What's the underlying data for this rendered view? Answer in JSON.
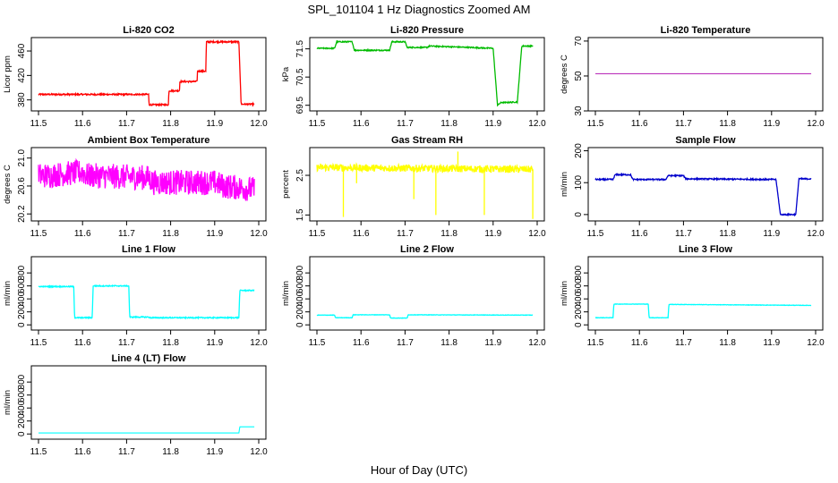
{
  "figure": {
    "title": "SPL_101104  1 Hz Diagnostics Zoomed AM",
    "xlabel": "Hour of Day (UTC)"
  },
  "chart_data": [
    {
      "type": "line",
      "title": "Li-820 CO2",
      "ylabel": "Licor ppm",
      "color": "#ff0000",
      "xlim": [
        11.5,
        12.0
      ],
      "ylim": [
        362,
        482
      ],
      "xticks": [
        11.5,
        11.6,
        11.7,
        11.8,
        11.9,
        12.0
      ],
      "yticks": [
        380,
        420,
        460
      ],
      "noise": 1.2,
      "series": [
        {
          "x": [
            11.5,
            11.75,
            11.751,
            11.795,
            11.796,
            11.82,
            11.821,
            11.86,
            11.861,
            11.88,
            11.881,
            11.955,
            11.96,
            11.99
          ],
          "y": [
            389,
            389,
            372,
            372,
            395,
            395,
            410,
            410,
            427,
            427,
            475,
            475,
            373,
            373
          ]
        }
      ]
    },
    {
      "type": "line",
      "title": "Li-820 Pressure",
      "ylabel": "kPa",
      "color": "#00bb00",
      "xlim": [
        11.5,
        12.0
      ],
      "ylim": [
        69.3,
        71.9
      ],
      "xticks": [
        11.5,
        11.6,
        11.7,
        11.8,
        11.9,
        12.0
      ],
      "yticks": [
        69.5,
        70.5,
        71.5
      ],
      "yticklabels": [
        "69.5",
        "70.5",
        "71.5"
      ],
      "noise": 0.02,
      "series": [
        {
          "x": [
            11.5,
            11.54,
            11.545,
            11.58,
            11.585,
            11.665,
            11.67,
            11.7,
            11.705,
            11.75,
            11.755,
            11.9,
            11.91,
            11.918,
            11.935,
            11.955,
            11.965,
            11.99
          ],
          "y": [
            71.52,
            71.52,
            71.75,
            71.75,
            71.45,
            71.45,
            71.75,
            71.75,
            71.55,
            71.55,
            71.6,
            71.52,
            69.5,
            69.6,
            69.6,
            69.62,
            71.6,
            71.6
          ]
        }
      ]
    },
    {
      "type": "line",
      "title": "Li-820 Temperature",
      "ylabel": "degrees C",
      "color": "#bb33bb",
      "xlim": [
        11.5,
        12.0
      ],
      "ylim": [
        30,
        72
      ],
      "xticks": [
        11.5,
        11.6,
        11.7,
        11.8,
        11.9,
        12.0
      ],
      "yticks": [
        30,
        50,
        70
      ],
      "noise": 0,
      "series": [
        {
          "x": [
            11.5,
            11.99
          ],
          "y": [
            51.3,
            51.3
          ]
        }
      ]
    },
    {
      "type": "line",
      "title": "Ambient Box Temperature",
      "ylabel": "degrees C",
      "color": "#ff00ff",
      "xlim": [
        11.5,
        12.0
      ],
      "ylim": [
        20.1,
        21.15
      ],
      "xticks": [
        11.5,
        11.6,
        11.7,
        11.8,
        11.9,
        12.0
      ],
      "yticks": [
        20.2,
        20.6,
        21.0
      ],
      "yticklabels": [
        "20.2",
        "20.6",
        "21.0"
      ],
      "noise": 0.18,
      "series": [
        {
          "x": [
            11.5,
            11.52,
            11.6,
            11.61,
            11.75,
            11.76,
            11.9,
            11.92,
            11.99
          ],
          "y": [
            20.75,
            20.75,
            20.8,
            20.75,
            20.72,
            20.65,
            20.65,
            20.6,
            20.55
          ]
        }
      ]
    },
    {
      "type": "line",
      "title": "Gas Stream RH",
      "ylabel": "percent",
      "color": "#ffff00",
      "xlim": [
        11.5,
        12.0
      ],
      "ylim": [
        1.35,
        3.2
      ],
      "xticks": [
        11.5,
        11.6,
        11.7,
        11.8,
        11.9,
        12.0
      ],
      "yticks": [
        1.5,
        2.5
      ],
      "yticklabels": [
        "1.5",
        "2.5"
      ],
      "noise": 0.09,
      "spikes": [
        [
          11.56,
          1.45
        ],
        [
          11.59,
          2.3
        ],
        [
          11.72,
          1.9
        ],
        [
          11.77,
          1.5
        ],
        [
          11.82,
          3.1
        ],
        [
          11.88,
          1.5
        ],
        [
          11.99,
          1.4
        ]
      ],
      "series": [
        {
          "x": [
            11.5,
            11.99
          ],
          "y": [
            2.7,
            2.65
          ]
        }
      ]
    },
    {
      "type": "line",
      "title": "Sample Flow",
      "ylabel": "ml/min",
      "color": "#0000cc",
      "xlim": [
        11.5,
        12.0
      ],
      "ylim": [
        -20,
        210
      ],
      "xticks": [
        11.5,
        11.6,
        11.7,
        11.8,
        11.9,
        12.0
      ],
      "yticks": [
        0,
        100,
        200
      ],
      "noise": 2,
      "series": [
        {
          "x": [
            11.5,
            11.54,
            11.545,
            11.58,
            11.585,
            11.66,
            11.665,
            11.7,
            11.705,
            11.91,
            11.92,
            11.955,
            11.962,
            11.99
          ],
          "y": [
            110,
            110,
            125,
            125,
            110,
            110,
            122,
            122,
            112,
            110,
            0,
            0,
            112,
            112
          ]
        }
      ]
    },
    {
      "type": "line",
      "title": "Line 1 Flow",
      "ylabel": "ml/min",
      "color": "#00ffff",
      "xlim": [
        11.5,
        12.0
      ],
      "ylim": [
        -80,
        1050
      ],
      "xticks": [
        11.5,
        11.6,
        11.7,
        11.8,
        11.9,
        12.0
      ],
      "yticks": [
        0,
        200,
        400,
        600,
        800
      ],
      "noise": 8,
      "series": [
        {
          "x": [
            11.5,
            11.58,
            11.582,
            11.622,
            11.624,
            11.705,
            11.707,
            11.75,
            11.752,
            11.955,
            11.957,
            11.99
          ],
          "y": [
            590,
            590,
            110,
            110,
            600,
            600,
            120,
            120,
            110,
            110,
            530,
            530
          ]
        }
      ]
    },
    {
      "type": "line",
      "title": "Line 2 Flow",
      "ylabel": "ml/min",
      "color": "#00ffff",
      "xlim": [
        11.5,
        12.0
      ],
      "ylim": [
        -80,
        1050
      ],
      "xticks": [
        11.5,
        11.6,
        11.7,
        11.8,
        11.9,
        12.0
      ],
      "yticks": [
        0,
        200,
        400,
        600,
        800
      ],
      "noise": 3,
      "series": [
        {
          "x": [
            11.5,
            11.54,
            11.542,
            11.58,
            11.582,
            11.665,
            11.667,
            11.705,
            11.707,
            11.99
          ],
          "y": [
            150,
            150,
            110,
            110,
            155,
            155,
            105,
            105,
            155,
            150
          ]
        }
      ]
    },
    {
      "type": "line",
      "title": "Line 3 Flow",
      "ylabel": "ml/min",
      "color": "#00ffff",
      "xlim": [
        11.5,
        12.0
      ],
      "ylim": [
        -80,
        1050
      ],
      "xticks": [
        11.5,
        11.6,
        11.7,
        11.8,
        11.9,
        12.0
      ],
      "yticks": [
        0,
        200,
        400,
        600,
        800
      ],
      "noise": 3,
      "series": [
        {
          "x": [
            11.5,
            11.54,
            11.542,
            11.62,
            11.622,
            11.665,
            11.667,
            11.99
          ],
          "y": [
            110,
            110,
            320,
            320,
            110,
            110,
            315,
            300
          ]
        }
      ]
    },
    {
      "type": "line",
      "title": "Line 4 (LT) Flow",
      "ylabel": "ml/min",
      "color": "#00ffff",
      "xlim": [
        11.5,
        12.0
      ],
      "ylim": [
        -80,
        1050
      ],
      "xticks": [
        11.5,
        11.6,
        11.7,
        11.8,
        11.9,
        12.0
      ],
      "yticks": [
        0,
        200,
        400,
        600,
        800
      ],
      "noise": 0,
      "series": [
        {
          "x": [
            11.5,
            11.955,
            11.957,
            11.99
          ],
          "y": [
            15,
            15,
            110,
            110
          ]
        }
      ]
    }
  ]
}
